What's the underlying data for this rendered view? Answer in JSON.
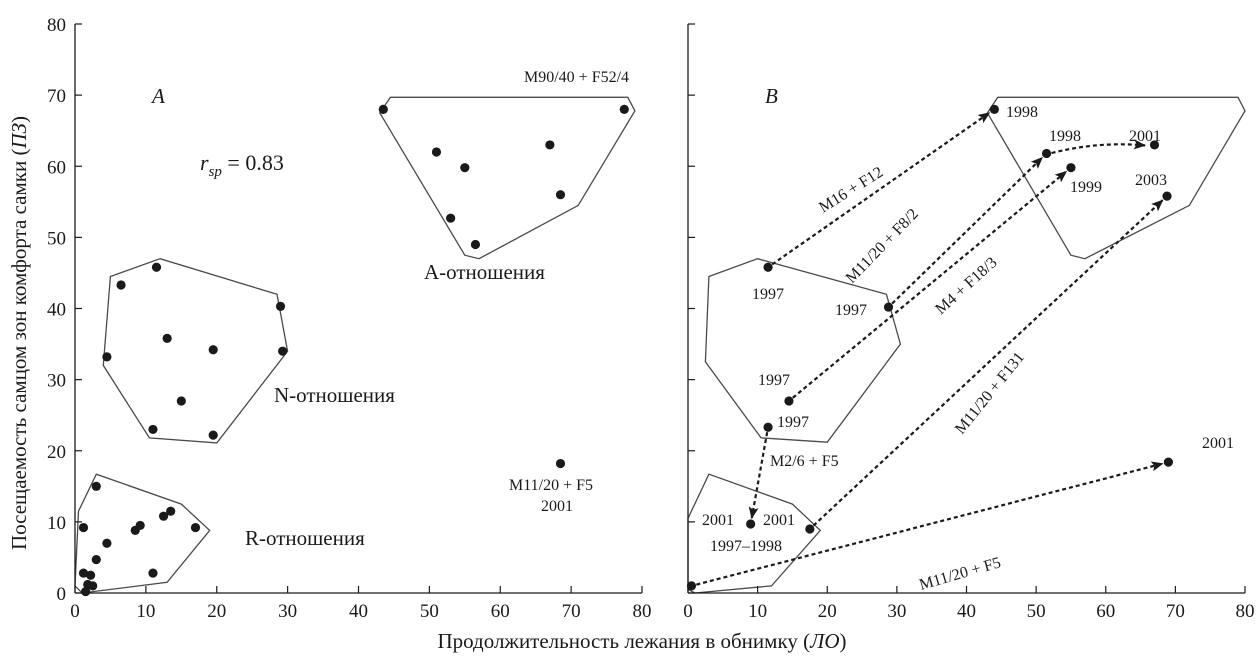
{
  "colors": {
    "ink": "#1a1a1a",
    "hull": "#4a4a4a",
    "background": "#ffffff"
  },
  "texts": {
    "ylabel": "Посещаемость самцом зон комфорта самки (ПЗ)",
    "ylabel_main": "Посещаемость самцом зон комфорта самки (",
    "ylabel_italic": "ПЗ",
    "ylabel_close": ")",
    "xlabel": "Продолжительность лежания в обнимку (ЛО)",
    "xlabel_main": "Продолжительность лежания в обнимку (",
    "xlabel_italic": "ЛО",
    "xlabel_close": ")"
  },
  "chart_data": [
    {
      "panel": "A",
      "type": "scatter",
      "xlim": [
        0,
        80
      ],
      "ylim": [
        0,
        80
      ],
      "xticks": [
        "0",
        "10",
        "20",
        "30",
        "40",
        "50",
        "60",
        "70",
        "80"
      ],
      "yticks": [
        "0",
        "10",
        "20",
        "30",
        "40",
        "50",
        "60",
        "70",
        "80"
      ],
      "rsp_symbol": "r",
      "rsp_sub": "sp",
      "rsp_value": " = 0.83",
      "points": [
        [
          43.5,
          68
        ],
        [
          51,
          62
        ],
        [
          55,
          59.8
        ],
        [
          67,
          63
        ],
        [
          77.5,
          68
        ],
        [
          68.5,
          56
        ],
        [
          53,
          52.7
        ],
        [
          56.5,
          49
        ],
        [
          6.5,
          43.3
        ],
        [
          11.5,
          45.8
        ],
        [
          4.5,
          33.2
        ],
        [
          13,
          35.8
        ],
        [
          19.5,
          34.2
        ],
        [
          29,
          40.3
        ],
        [
          29.3,
          34
        ],
        [
          15,
          27
        ],
        [
          11,
          23
        ],
        [
          19.5,
          22.2
        ],
        [
          3,
          15
        ],
        [
          1.2,
          9.2
        ],
        [
          4.5,
          7
        ],
        [
          3,
          4.7
        ],
        [
          2.2,
          2.5
        ],
        [
          1.2,
          2.8
        ],
        [
          2.5,
          1
        ],
        [
          1.5,
          0.2
        ],
        [
          8.5,
          8.8
        ],
        [
          9.2,
          9.5
        ],
        [
          12.5,
          10.8
        ],
        [
          13.5,
          11.5
        ],
        [
          17,
          9.2
        ],
        [
          11,
          2.8
        ],
        [
          1.8,
          1.2
        ],
        [
          68.5,
          18.2
        ]
      ],
      "hulls": [
        {
          "label": "A-отношения",
          "polygon": [
            [
              43,
              67.5
            ],
            [
              44.5,
              69.7
            ],
            [
              78,
              69.7
            ],
            [
              79,
              67.8
            ],
            [
              71,
              54.5
            ],
            [
              57,
              47
            ],
            [
              55,
              47.5
            ]
          ]
        },
        {
          "label": "N-отношения",
          "polygon": [
            [
              5,
              44.5
            ],
            [
              12,
              47
            ],
            [
              28.5,
              42
            ],
            [
              30,
              34
            ],
            [
              20,
              21.1
            ],
            [
              10.5,
              21.8
            ],
            [
              4,
              32
            ]
          ]
        },
        {
          "label": "R-отношения",
          "polygon": [
            [
              0.5,
              11.5
            ],
            [
              3,
              16.7
            ],
            [
              15,
              12.5
            ],
            [
              19,
              8.8
            ],
            [
              13,
              1.5
            ],
            [
              1,
              0
            ],
            [
              0,
              1
            ]
          ]
        }
      ],
      "annotations": [
        "M90/40 + F52/4",
        "M11/20 + F5",
        "2001"
      ]
    },
    {
      "panel": "B",
      "type": "scatter",
      "xlim": [
        0,
        80
      ],
      "ylim": [
        0,
        80
      ],
      "xticks": [
        "0",
        "10",
        "20",
        "30",
        "40",
        "50",
        "60",
        "70",
        "80"
      ],
      "yticks": [],
      "points": [
        {
          "x": 44,
          "y": 68,
          "label": "1998"
        },
        {
          "x": 51.5,
          "y": 61.8,
          "label": "1998"
        },
        {
          "x": 55,
          "y": 59.8,
          "label": "1999"
        },
        {
          "x": 67,
          "y": 63,
          "label": "2001"
        },
        {
          "x": 68.8,
          "y": 55.8,
          "label": "2003"
        },
        {
          "x": 11.5,
          "y": 45.8,
          "label": "1997"
        },
        {
          "x": 28.8,
          "y": 40.2,
          "label": "1997"
        },
        {
          "x": 14.5,
          "y": 27,
          "label": "1997"
        },
        {
          "x": 11.5,
          "y": 23.3,
          "label": "1997"
        },
        {
          "x": 9,
          "y": 9.7,
          "label": "2001"
        },
        {
          "x": 17.5,
          "y": 9,
          "label": "2001"
        },
        {
          "x": 69,
          "y": 18.4,
          "label": "2001"
        },
        {
          "x": 0.5,
          "y": 1,
          "label": ""
        }
      ],
      "labels_extra": [
        "1997–1998"
      ],
      "hulls": [
        {
          "polygon": [
            [
              43,
              67.5
            ],
            [
              44.5,
              69.7
            ],
            [
              79,
              69.7
            ],
            [
              80,
              67.8
            ],
            [
              72,
              54.5
            ],
            [
              57,
              47
            ],
            [
              55,
              47.5
            ]
          ]
        },
        {
          "polygon": [
            [
              3,
              44.5
            ],
            [
              10,
              47
            ],
            [
              28.5,
              42
            ],
            [
              30.5,
              35
            ],
            [
              20,
              21.2
            ],
            [
              10.5,
              21.8
            ],
            [
              2.5,
              32.5
            ]
          ]
        },
        {
          "polygon": [
            [
              0,
              10.5
            ],
            [
              3,
              16.7
            ],
            [
              15,
              12.5
            ],
            [
              19,
              8.8
            ],
            [
              12,
              1
            ],
            [
              1,
              0
            ],
            [
              0,
              0.5
            ]
          ]
        }
      ],
      "transitions": [
        {
          "label": "M16 + F12",
          "from": [
            11.5,
            45.8
          ],
          "to": [
            44,
            68
          ]
        },
        {
          "label": "M11/20 + F8/2",
          "from": [
            28.8,
            40.2
          ],
          "to": [
            51.5,
            61.8
          ]
        },
        {
          "label": "",
          "from": [
            51.5,
            61.8
          ],
          "to": [
            66.5,
            63
          ],
          "curve": true
        },
        {
          "label": "M4 + F18/3",
          "from": [
            14.5,
            27
          ],
          "to": [
            55,
            59.8
          ]
        },
        {
          "label": "M11/20 + F131",
          "from": [
            17.5,
            9
          ],
          "to": [
            68.8,
            55.8
          ]
        },
        {
          "label": "M2/6 + F5",
          "from": [
            11.5,
            23.3
          ],
          "to": [
            9,
            9.7
          ]
        },
        {
          "label": "M11/20 + F5",
          "from": [
            0.5,
            1
          ],
          "to": [
            69,
            18.4
          ]
        }
      ]
    }
  ]
}
